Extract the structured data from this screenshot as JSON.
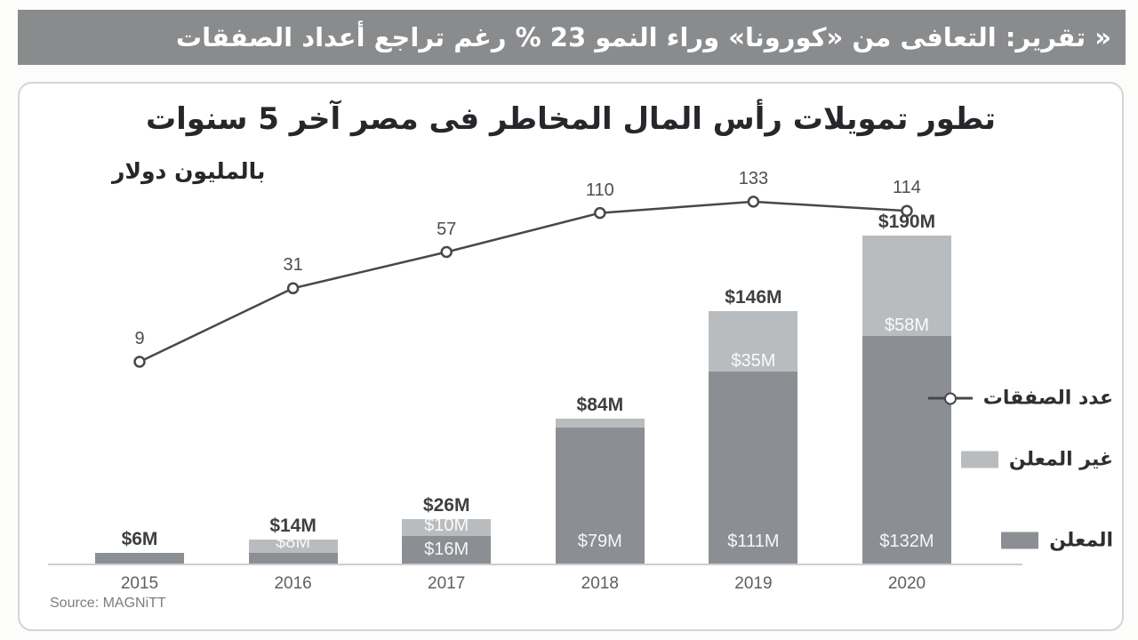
{
  "headline": {
    "text": "« تقرير: التعافى من «كورونا» وراء النمو 23 % رغم تراجع أعداد الصفقات"
  },
  "chart_data": {
    "type": "combo-bar-line",
    "title": "تطور تمويلات رأس المال المخاطر فى مصر آخر 5 سنوات",
    "unit_label": "بالمليون دولار",
    "source": "Source: MAGNiTT",
    "categories": [
      "2015",
      "2016",
      "2017",
      "2018",
      "2019",
      "2020"
    ],
    "series": [
      {
        "name": "المعلن",
        "type": "bar-stack-bottom",
        "values": [
          6,
          6,
          16,
          79,
          111,
          132
        ],
        "labels": [
          null,
          null,
          "$16M",
          "$79M",
          "$111M",
          "$132M"
        ],
        "color": "#8b8f94"
      },
      {
        "name": "غير المعلن",
        "type": "bar-stack-top",
        "values": [
          0,
          8,
          10,
          5,
          35,
          58
        ],
        "labels": [
          null,
          "$8M",
          "$10M",
          null,
          "$35M",
          "$58M"
        ],
        "color": "#b9bcbf"
      },
      {
        "name": "عدد الصفقات",
        "type": "line",
        "values": [
          9,
          31,
          57,
          110,
          133,
          114
        ],
        "labels": [
          "9",
          "31",
          "57",
          "110",
          "133",
          "114"
        ],
        "color": "#47484a"
      }
    ],
    "totals": {
      "values": [
        6,
        14,
        26,
        84,
        146,
        190
      ],
      "labels": [
        "$6M",
        "$14M",
        "$26M",
        "$84M",
        "$146M",
        "$190M"
      ]
    },
    "legend": [
      {
        "label": "عدد الصفقات",
        "marker": "line-circle"
      },
      {
        "label": "غير المعلن",
        "marker": "swatch-light"
      },
      {
        "label": "المعلن",
        "marker": "swatch-dark"
      }
    ],
    "value_axis": "USD millions (bars), deal count (line)",
    "grid": false,
    "legend_position": "right"
  }
}
